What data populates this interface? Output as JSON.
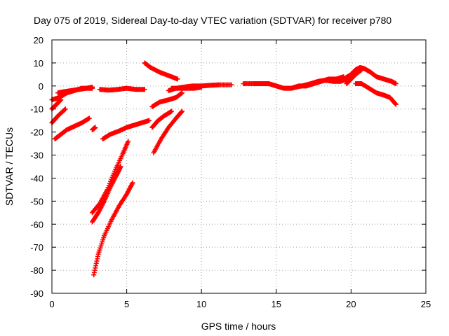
{
  "chart_data": {
    "type": "scatter",
    "title": "Day 075 of 2019, Sidereal Day-to-day VTEC variation (SDTVAR) for receiver p780",
    "xlabel": "GPS time / hours",
    "ylabel": "SDTVAR / TECUs",
    "xlim": [
      0,
      25
    ],
    "ylim": [
      -90,
      20
    ],
    "xticks": [
      0,
      5,
      10,
      15,
      20,
      25
    ],
    "yticks": [
      -90,
      -80,
      -70,
      -60,
      -50,
      -40,
      -30,
      -20,
      -10,
      0,
      10,
      20
    ],
    "grid": true,
    "marker": "plus",
    "color": "#ff0000",
    "tracks": [
      {
        "x": [
          0.0,
          0.5,
          1.0,
          1.5,
          2.0,
          2.5,
          2.7
        ],
        "y": [
          -6,
          -5,
          -3,
          -2,
          -1,
          -1,
          -1
        ]
      },
      {
        "x": [
          0.4,
          0.8,
          1.3,
          1.8,
          2.3,
          2.7
        ],
        "y": [
          -3,
          -2.5,
          -2,
          -1.5,
          -1,
          -0.5
        ]
      },
      {
        "x": [
          0.0,
          0.3,
          0.6
        ],
        "y": [
          -10,
          -8,
          -6
        ]
      },
      {
        "x": [
          0.0,
          0.4,
          0.9
        ],
        "y": [
          -16,
          -13,
          -10
        ]
      },
      {
        "x": [
          0.2,
          0.6,
          1.0,
          1.5,
          2.0,
          2.5
        ],
        "y": [
          -23,
          -21,
          -19,
          -17.5,
          -16,
          -14
        ]
      },
      {
        "x": [
          2.7,
          2.9
        ],
        "y": [
          -19,
          -18
        ]
      },
      {
        "x": [
          3.2,
          3.8,
          4.4,
          5.0,
          5.6,
          6.2
        ],
        "y": [
          -1.5,
          -1.8,
          -1.5,
          -1,
          -1.5,
          -1.5
        ]
      },
      {
        "x": [
          3.4,
          3.9,
          4.5,
          5.0,
          5.5,
          6.0,
          6.5
        ],
        "y": [
          -23,
          -21,
          -19.5,
          -18,
          -17,
          -16,
          -15
        ]
      },
      {
        "x": [
          2.7,
          3.2,
          3.7,
          4.2,
          4.7,
          5.1
        ],
        "y": [
          -55,
          -51,
          -45,
          -37,
          -30,
          -24
        ]
      },
      {
        "x": [
          2.7,
          3.1,
          3.5,
          3.9,
          4.3,
          4.6
        ],
        "y": [
          -59,
          -55,
          -50,
          -44,
          -39,
          -35
        ]
      },
      {
        "x": [
          2.8,
          3.1,
          3.5,
          4.0,
          4.5,
          5.0,
          5.4
        ],
        "y": [
          -82,
          -73,
          -65,
          -58,
          -52,
          -47,
          -42
        ]
      },
      {
        "x": [
          6.2,
          6.6,
          7.2,
          7.8,
          8.4
        ],
        "y": [
          10,
          8,
          6,
          4.5,
          3
        ]
      },
      {
        "x": [
          6.7,
          7.2,
          7.8,
          8.3,
          8.7
        ],
        "y": [
          -9,
          -7,
          -6,
          -5,
          -3
        ]
      },
      {
        "x": [
          6.7,
          7.1,
          7.5,
          8.0
        ],
        "y": [
          -18,
          -15,
          -13,
          -11
        ]
      },
      {
        "x": [
          6.8,
          7.3,
          7.8,
          8.3,
          8.7
        ],
        "y": [
          -29,
          -23,
          -18,
          -14,
          -11
        ]
      },
      {
        "x": [
          7.8,
          8.3,
          8.8,
          9.4,
          10.0,
          10.6,
          11.2,
          12.0
        ],
        "y": [
          -2,
          -1,
          -0.5,
          0,
          0,
          0.3,
          0.5,
          0.5
        ]
      },
      {
        "x": [
          8.0,
          8.5,
          9.0,
          9.5,
          10.0
        ],
        "y": [
          -1,
          -1,
          -1,
          -1,
          -0.5
        ]
      },
      {
        "x": [
          12.8,
          13.5,
          14.0,
          14.5,
          15.0,
          15.5,
          16.0,
          16.5,
          17.0
        ],
        "y": [
          1,
          1,
          1,
          1,
          0,
          -1,
          -1,
          0,
          0
        ]
      },
      {
        "x": [
          16.0,
          16.7,
          17.3,
          17.8,
          18.3,
          18.8,
          19.3,
          19.7
        ],
        "y": [
          -1,
          0,
          1,
          2,
          2.5,
          2,
          2,
          3
        ]
      },
      {
        "x": [
          17.0,
          17.5,
          18.0,
          18.5,
          19.0,
          19.5
        ],
        "y": [
          0,
          1,
          2,
          3,
          3,
          4
        ]
      },
      {
        "x": [
          19.5,
          20.0,
          20.3,
          20.6,
          20.9,
          21.3,
          21.7,
          22.2,
          22.7,
          23.0
        ],
        "y": [
          3,
          5,
          7,
          8,
          7.5,
          6,
          4,
          3,
          2,
          1
        ]
      },
      {
        "x": [
          19.7,
          20.0,
          20.3,
          20.7
        ],
        "y": [
          1,
          3,
          5,
          7
        ]
      },
      {
        "x": [
          20.3,
          20.7,
          21.2,
          21.7,
          22.2,
          22.6,
          23.0
        ],
        "y": [
          1,
          1,
          -1,
          -3,
          -4,
          -5,
          -8
        ]
      }
    ]
  }
}
